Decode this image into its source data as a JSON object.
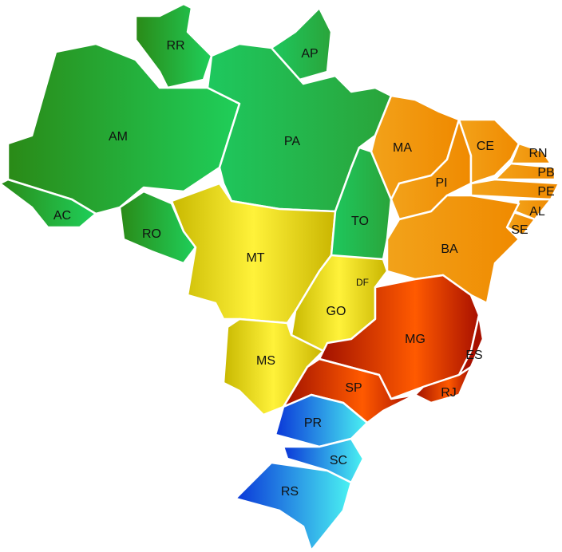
{
  "states": [
    "RR",
    "AP",
    "AM",
    "PA",
    "AC",
    "RO",
    "MA",
    "CE",
    "RN",
    "PB",
    "PE",
    "AL",
    "SE",
    "PI",
    "TO",
    "BA",
    "MT",
    "DF",
    "GO",
    "MS",
    "MG",
    "ES",
    "SP",
    "RJ",
    "PR",
    "SC",
    "RS"
  ]
}
